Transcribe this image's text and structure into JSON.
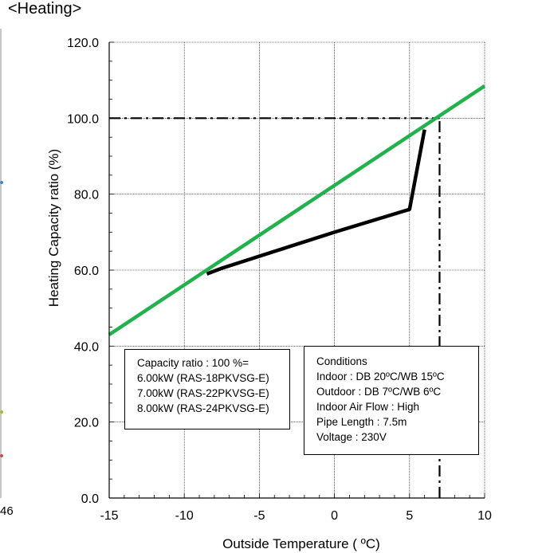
{
  "heading": "<Heating>",
  "stray_tick_label": "46",
  "chart_data": {
    "type": "line",
    "title": "",
    "xlabel": "Outside Temperature ( ºC)",
    "ylabel": "Heating Capacity ratio (%)",
    "xlim": [
      -15,
      10
    ],
    "ylim": [
      0,
      120
    ],
    "x_ticks": [
      "-15",
      "-10",
      "-5",
      "0",
      "5",
      "10"
    ],
    "y_ticks": [
      "0.0",
      "20.0",
      "40.0",
      "60.0",
      "80.0",
      "100.0",
      "120.0"
    ],
    "grid": true,
    "series": [
      {
        "color": "#000000",
        "style": "solid-thick",
        "x": [
          -8.5,
          -7.5,
          0,
          5,
          6
        ],
        "y": [
          59,
          60.5,
          70,
          76,
          97
        ]
      },
      {
        "color": "#22b14c",
        "style": "solid-thick",
        "x": [
          -15,
          10
        ],
        "y": [
          43,
          108.5
        ]
      }
    ],
    "reference_lines": [
      {
        "type": "horizontal",
        "y": 100,
        "x_from": -15,
        "x_to": 7,
        "style": "dash-dot",
        "color": "#000000"
      },
      {
        "type": "vertical",
        "x": 7,
        "y_from": 0,
        "y_to": 100,
        "style": "dash-dot",
        "color": "#000000"
      }
    ]
  },
  "capacity_box": {
    "lines": [
      "Capacity ratio : 100 %=",
      "6.00kW (RAS-18PKVSG-E)",
      "7.00kW (RAS-22PKVSG-E)",
      "8.00kW (RAS-24PKVSG-E)"
    ]
  },
  "conditions_box": {
    "title": "Conditions",
    "indoor": "Indoor : DB 20ºC/WB 15ºC",
    "outdoor": "Outdoor : DB 7ºC/WB 6ºC",
    "airflow": "Indoor Air Flow : High",
    "pipe": "Pipe Length : 7.5m",
    "voltage": "Voltage : 230V"
  }
}
